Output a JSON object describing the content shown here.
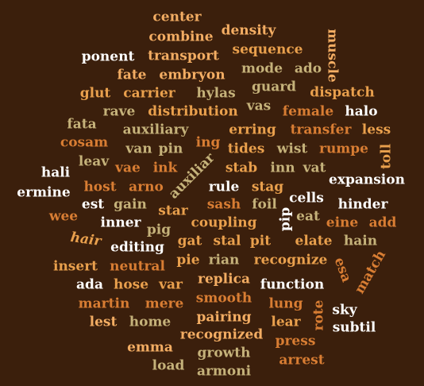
{
  "palette": {
    "background": "#3b1f0c",
    "light_orange": "#f3ad63",
    "dark_orange": "#d87d33",
    "khaki": "#c5b27a",
    "white": "#ffffff",
    "mid_orange": "#e9a04d"
  },
  "words": [
    "center",
    "combine",
    "density",
    "muscle",
    "ponent",
    "transport",
    "sequence",
    "fate",
    "embryon",
    "mode",
    "ado",
    "glut",
    "carrier",
    "hylas",
    "guard",
    "dispatch",
    "rave",
    "distribution",
    "vas",
    "female",
    "halo",
    "fata",
    "auxiliary",
    "erring",
    "transfer",
    "less",
    "cosam",
    "van",
    "pin",
    "ing",
    "tides",
    "wist",
    "rumpe",
    "toll",
    "leav",
    "vae",
    "ink",
    "auxiliar",
    "stab",
    "inn",
    "vat",
    "hali",
    "expansion",
    "ermine",
    "host",
    "arno",
    "rule",
    "stag",
    "cells",
    "hinder",
    "wee",
    "est",
    "gain",
    "star",
    "sash",
    "foil",
    "pip",
    "eat",
    "eine",
    "add",
    "inner",
    "coupling",
    "hair",
    "pig",
    "gat",
    "stal",
    "pit",
    "elate",
    "hain",
    "editing",
    "pie",
    "rian",
    "recognize",
    "match",
    "insert",
    "neutral",
    "esa",
    "ada",
    "hose",
    "var",
    "replica",
    "function",
    "martin",
    "mere",
    "smooth",
    "lung",
    "rote",
    "sky",
    "lest",
    "home",
    "pairing",
    "lear",
    "subtil",
    "recognized",
    "press",
    "emma",
    "growth",
    "load",
    "arrest",
    "armoni"
  ]
}
